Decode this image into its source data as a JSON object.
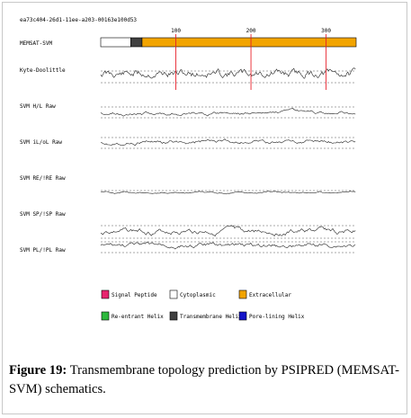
{
  "sequence_id": "ea73c404-26d1-11ee-a203-00163e100d53",
  "topology_track_label": "MEMSAT-SVM",
  "ruler_ticks": [
    "100",
    "200",
    "300"
  ],
  "ruler_tick_positions": [
    100,
    200,
    300
  ],
  "sequence_length": 340,
  "topology_segments": [
    {
      "type": "Cytoplasmic",
      "start": 1,
      "end": 40
    },
    {
      "type": "Transmembrane Helix",
      "start": 41,
      "end": 55
    },
    {
      "type": "Extracellular",
      "start": 56,
      "end": 340
    }
  ],
  "tracks": [
    {
      "label": "Kyte-Doolittle"
    },
    {
      "label": "SVM H/L Raw"
    },
    {
      "label": "SVM iL/oL Raw"
    },
    {
      "label": "SVM RE/!RE Raw"
    },
    {
      "label": "SVM SP/!SP Raw"
    },
    {
      "label": "SVM PL/!PL Raw"
    }
  ],
  "legend": [
    {
      "label": "Signal Peptide",
      "color": "#e8246e"
    },
    {
      "label": "Cytoplasmic",
      "color": "#ffffff"
    },
    {
      "label": "Extracellular",
      "color": "#f2a400"
    },
    {
      "label": "Re-entrant Helix",
      "color": "#2db83d"
    },
    {
      "label": "Transmembrane Helix",
      "color": "#404040"
    },
    {
      "label": "Pore-lining Helix",
      "color": "#1414c8"
    }
  ],
  "caption": {
    "label": "Figure 19:",
    "text": " Transmembrane topology prediction by PSIPRED (MEMSAT-SVM) schematics."
  },
  "colors": {
    "marker_line": "#e8202a",
    "trace": "#222222",
    "dashed": "#555555"
  }
}
